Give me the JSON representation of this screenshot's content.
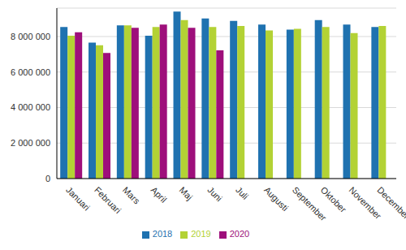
{
  "chart_data": {
    "type": "bar",
    "categories": [
      "Januari",
      "Februari",
      "Mars",
      "April",
      "Maj",
      "Juni",
      "Juli",
      "Augusti",
      "September",
      "Oktober",
      "November",
      "December"
    ],
    "series": [
      {
        "name": "2018",
        "color": "#1f72b0",
        "values": [
          8540000,
          7660000,
          8630000,
          8050000,
          9410000,
          9020000,
          8880000,
          8680000,
          8390000,
          8930000,
          8680000,
          8540000
        ]
      },
      {
        "name": "2019",
        "color": "#b3d235",
        "values": [
          8050000,
          7510000,
          8630000,
          8540000,
          8930000,
          8540000,
          8590000,
          8340000,
          8440000,
          8540000,
          8200000,
          8590000
        ]
      },
      {
        "name": "2020",
        "color": "#9e0f7b",
        "values": [
          8240000,
          7070000,
          8490000,
          8680000,
          8490000,
          7220000,
          null,
          null,
          null,
          null,
          null,
          null
        ]
      }
    ],
    "ylim": [
      0,
      9600000
    ],
    "yticks": [
      0,
      {
        "value": 2000000,
        "label": "2 000 000"
      },
      {
        "value": 4000000,
        "label": "4 000 000"
      },
      {
        "value": 6000000,
        "label": "6 000 000"
      },
      {
        "value": 8000000,
        "label": "8 000 000"
      }
    ],
    "grid": true,
    "legend": "bottom"
  }
}
